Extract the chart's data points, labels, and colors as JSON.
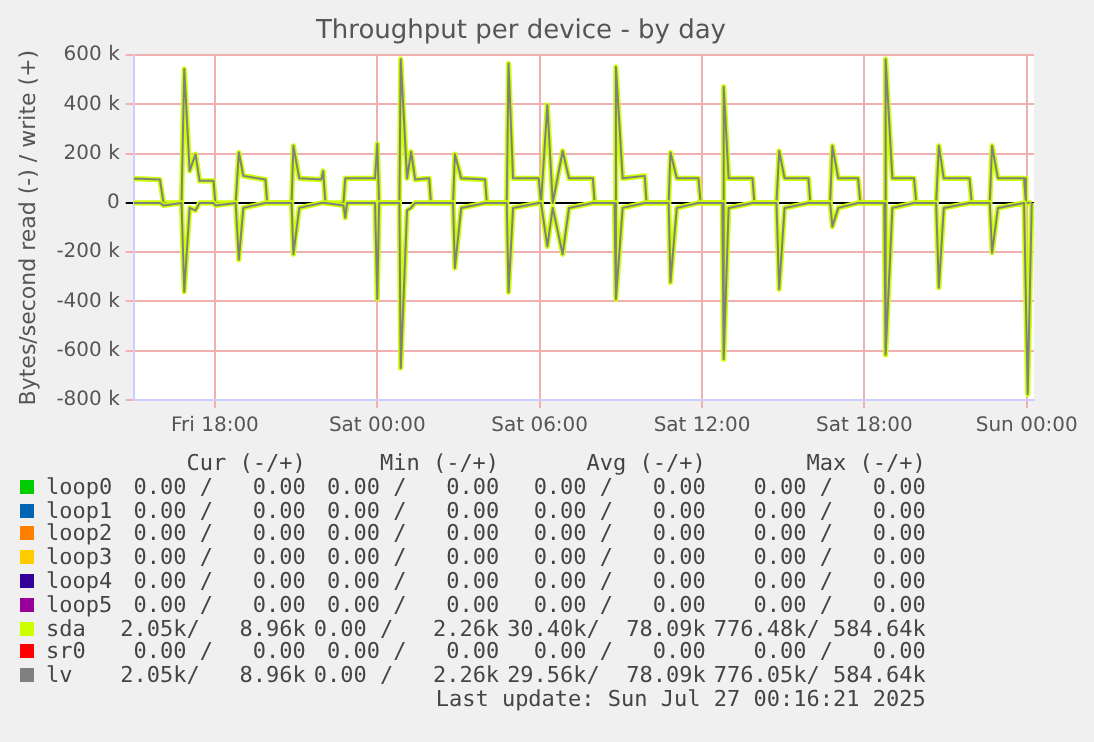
{
  "chart_data": {
    "type": "line",
    "title": "Throughput per device - by day",
    "ylabel": "Bytes/second read (-) / write (+)",
    "x": [
      "2025-07-25T15:00",
      "2025-07-25T15:13",
      "2025-07-25T15:58",
      "2025-07-25T16:06",
      "2025-07-25T16:46",
      "2025-07-25T16:52",
      "2025-07-25T17:04",
      "2025-07-25T17:17",
      "2025-07-25T17:26",
      "2025-07-25T17:57",
      "2025-07-25T18:01",
      "2025-07-25T18:46",
      "2025-07-25T18:53",
      "2025-07-25T19:03",
      "2025-07-25T19:52",
      "2025-07-25T19:56",
      "2025-07-25T20:50",
      "2025-07-25T20:54",
      "2025-07-25T21:07",
      "2025-07-25T21:56",
      "2025-07-25T22:00",
      "2025-07-25T22:05",
      "2025-07-25T22:45",
      "2025-07-25T22:49",
      "2025-07-25T22:53",
      "2025-07-25T23:55",
      "2025-07-26T00:00",
      "2025-07-26T00:04",
      "2025-07-26T00:49",
      "2025-07-26T00:52",
      "2025-07-26T01:06",
      "2025-07-26T01:15",
      "2025-07-26T01:24",
      "2025-07-26T01:55",
      "2025-07-26T01:59",
      "2025-07-26T02:48",
      "2025-07-26T02:52",
      "2025-07-26T03:06",
      "2025-07-26T03:59",
      "2025-07-26T04:03",
      "2025-07-26T04:47",
      "2025-07-26T04:51",
      "2025-07-26T05:01",
      "2025-07-26T05:58",
      "2025-07-26T06:03",
      "2025-07-26T06:17",
      "2025-07-26T06:29",
      "2025-07-26T06:51",
      "2025-07-26T07:05",
      "2025-07-26T07:58",
      "2025-07-26T08:02",
      "2025-07-26T08:46",
      "2025-07-26T08:49",
      "2025-07-26T09:04",
      "2025-07-26T09:53",
      "2025-07-26T09:57",
      "2025-07-26T10:46",
      "2025-07-26T10:50",
      "2025-07-26T11:04",
      "2025-07-26T11:52",
      "2025-07-26T11:57",
      "2025-07-26T12:45",
      "2025-07-26T12:48",
      "2025-07-26T12:59",
      "2025-07-26T13:52",
      "2025-07-26T13:56",
      "2025-07-26T14:45",
      "2025-07-26T14:51",
      "2025-07-26T15:03",
      "2025-07-26T15:56",
      "2025-07-26T16:00",
      "2025-07-26T16:44",
      "2025-07-26T16:49",
      "2025-07-26T17:02",
      "2025-07-26T17:46",
      "2025-07-26T17:51",
      "2025-07-26T18:44",
      "2025-07-26T18:47",
      "2025-07-26T19:02",
      "2025-07-26T19:50",
      "2025-07-26T19:55",
      "2025-07-26T20:39",
      "2025-07-26T20:45",
      "2025-07-26T20:56",
      "2025-07-26T21:53",
      "2025-07-26T21:58",
      "2025-07-26T22:38",
      "2025-07-26T22:43",
      "2025-07-26T22:56",
      "2025-07-26T23:54",
      "2025-07-26T23:58",
      "2025-07-27T00:02",
      "2025-07-27T00:11"
    ],
    "xlim": [
      "2025-07-25T15:00",
      "2025-07-27T00:16"
    ],
    "xticks": [
      {
        "value": "2025-07-25T18:00",
        "label": "Fri 18:00"
      },
      {
        "value": "2025-07-26T00:00",
        "label": "Sat 00:00"
      },
      {
        "value": "2025-07-26T06:00",
        "label": "Sat 06:00"
      },
      {
        "value": "2025-07-26T12:00",
        "label": "Sat 12:00"
      },
      {
        "value": "2025-07-26T18:00",
        "label": "Sat 18:00"
      },
      {
        "value": "2025-07-27T00:00",
        "label": "Sun 00:00"
      }
    ],
    "ylim": [
      -800,
      600
    ],
    "yticks": [
      {
        "value": -800,
        "label": "-800 k"
      },
      {
        "value": -600,
        "label": "-600 k"
      },
      {
        "value": -400,
        "label": "-400 k"
      },
      {
        "value": -200,
        "label": "-200 k"
      },
      0,
      {
        "value": 200,
        "label": "200 k"
      },
      {
        "value": 400,
        "label": "400 k"
      },
      {
        "value": 600,
        "label": "600 k"
      }
    ],
    "grid": true,
    "legend": "bottom",
    "marker": "none",
    "line_style": "solid",
    "series": [
      {
        "name": "loop0",
        "color": "#00cc00",
        "values": [
          null,
          null,
          null,
          null,
          null,
          null,
          null,
          null,
          null,
          null,
          null,
          null,
          null,
          null,
          null,
          null,
          null,
          null,
          null,
          null,
          null,
          null,
          null,
          null,
          null,
          null,
          null,
          null,
          null,
          null,
          null,
          null,
          null,
          null,
          null,
          null,
          null,
          null,
          null,
          null,
          null,
          null,
          null,
          null,
          null,
          null,
          null,
          null,
          null,
          null,
          null,
          null,
          null,
          null,
          null,
          null,
          null,
          null,
          null,
          null,
          null,
          null,
          null,
          null,
          null,
          null,
          null,
          null,
          null,
          null,
          null,
          null,
          null,
          null,
          null,
          null,
          null,
          null,
          null,
          null,
          null,
          null,
          null,
          null,
          null,
          null,
          null,
          null,
          null,
          null,
          null,
          null,
          null
        ]
      },
      {
        "name": "loop1",
        "color": "#0066b3",
        "values": [
          null,
          null,
          null,
          null,
          null,
          null,
          null,
          null,
          null,
          null,
          null,
          null,
          null,
          null,
          null,
          null,
          null,
          null,
          null,
          null,
          null,
          null,
          null,
          null,
          null,
          null,
          null,
          null,
          null,
          null,
          null,
          null,
          null,
          null,
          null,
          null,
          null,
          null,
          null,
          null,
          null,
          null,
          null,
          null,
          null,
          null,
          null,
          null,
          null,
          null,
          null,
          null,
          null,
          null,
          null,
          null,
          null,
          null,
          null,
          null,
          null,
          null,
          null,
          null,
          null,
          null,
          null,
          null,
          null,
          null,
          null,
          null,
          null,
          null,
          null,
          null,
          null,
          null,
          null,
          null,
          null,
          null,
          null,
          null,
          null,
          null,
          null,
          null,
          null,
          null,
          null,
          null,
          null
        ]
      },
      {
        "name": "loop2",
        "color": "#ff8000",
        "values": [
          null,
          null,
          null,
          null,
          null,
          null,
          null,
          null,
          null,
          null,
          null,
          null,
          null,
          null,
          null,
          null,
          null,
          null,
          null,
          null,
          null,
          null,
          null,
          null,
          null,
          null,
          null,
          null,
          null,
          null,
          null,
          null,
          null,
          null,
          null,
          null,
          null,
          null,
          null,
          null,
          null,
          null,
          null,
          null,
          null,
          null,
          null,
          null,
          null,
          null,
          null,
          null,
          null,
          null,
          null,
          null,
          null,
          null,
          null,
          null,
          null,
          null,
          null,
          null,
          null,
          null,
          null,
          null,
          null,
          null,
          null,
          null,
          null,
          null,
          null,
          null,
          null,
          null,
          null,
          null,
          null,
          null,
          null,
          null,
          null,
          null,
          null,
          null,
          null,
          null,
          null,
          null,
          null
        ]
      },
      {
        "name": "loop3",
        "color": "#ffcc00",
        "values": [
          null,
          null,
          null,
          null,
          null,
          null,
          null,
          null,
          null,
          null,
          null,
          null,
          null,
          null,
          null,
          null,
          null,
          null,
          null,
          null,
          null,
          null,
          null,
          null,
          null,
          null,
          null,
          null,
          null,
          null,
          null,
          null,
          null,
          null,
          null,
          null,
          null,
          null,
          null,
          null,
          null,
          null,
          null,
          null,
          null,
          null,
          null,
          null,
          null,
          null,
          null,
          null,
          null,
          null,
          null,
          null,
          null,
          null,
          null,
          null,
          null,
          null,
          null,
          null,
          null,
          null,
          null,
          null,
          null,
          null,
          null,
          null,
          null,
          null,
          null,
          null,
          null,
          null,
          null,
          null,
          null,
          null,
          null,
          null,
          null,
          null,
          null,
          null,
          null,
          null,
          null,
          null,
          null
        ]
      },
      {
        "name": "loop4",
        "color": "#330099",
        "values": [
          null,
          null,
          null,
          null,
          null,
          null,
          null,
          null,
          null,
          null,
          null,
          null,
          null,
          null,
          null,
          null,
          null,
          null,
          null,
          null,
          null,
          null,
          null,
          null,
          null,
          null,
          null,
          null,
          null,
          null,
          null,
          null,
          null,
          null,
          null,
          null,
          null,
          null,
          null,
          null,
          null,
          null,
          null,
          null,
          null,
          null,
          null,
          null,
          null,
          null,
          null,
          null,
          null,
          null,
          null,
          null,
          null,
          null,
          null,
          null,
          null,
          null,
          null,
          null,
          null,
          null,
          null,
          null,
          null,
          null,
          null,
          null,
          null,
          null,
          null,
          null,
          null,
          null,
          null,
          null,
          null,
          null,
          null,
          null,
          null,
          null,
          null,
          null,
          null,
          null,
          null,
          null,
          null
        ]
      },
      {
        "name": "loop5",
        "color": "#990099",
        "values": [
          null,
          null,
          null,
          null,
          null,
          null,
          null,
          null,
          null,
          null,
          null,
          null,
          null,
          null,
          null,
          null,
          null,
          null,
          null,
          null,
          null,
          null,
          null,
          null,
          null,
          null,
          null,
          null,
          null,
          null,
          null,
          null,
          null,
          null,
          null,
          null,
          null,
          null,
          null,
          null,
          null,
          null,
          null,
          null,
          null,
          null,
          null,
          null,
          null,
          null,
          null,
          null,
          null,
          null,
          null,
          null,
          null,
          null,
          null,
          null,
          null,
          null,
          null,
          null,
          null,
          null,
          null,
          null,
          null,
          null,
          null,
          null,
          null,
          null,
          null,
          null,
          null,
          null,
          null,
          null,
          null,
          null,
          null,
          null,
          null,
          null,
          null,
          null,
          null,
          null,
          null,
          null,
          null
        ]
      },
      {
        "name": "sda",
        "color": "#ccff00",
        "values": [
          98,
          98,
          95,
          0,
          0,
          544,
          130,
          198,
          90,
          90,
          0,
          0,
          205,
          110,
          95,
          0,
          0,
          232,
          100,
          95,
          130,
          0,
          0,
          100,
          100,
          100,
          240,
          0,
          0,
          584,
          100,
          208,
          95,
          100,
          0,
          0,
          198,
          100,
          95,
          0,
          0,
          566,
          100,
          100,
          0,
          398,
          0,
          211,
          100,
          100,
          0,
          0,
          552,
          100,
          110,
          0,
          0,
          205,
          100,
          100,
          0,
          0,
          472,
          100,
          100,
          0,
          0,
          211,
          100,
          100,
          0,
          0,
          232,
          100,
          100,
          0,
          0,
          584,
          100,
          100,
          0,
          0,
          232,
          100,
          100,
          0,
          0,
          232,
          100,
          100,
          0,
          0,
          0
        ]
      },
      {
        "name": "sr0",
        "color": "#ff0000",
        "values": [
          null,
          null,
          null,
          null,
          null,
          null,
          null,
          null,
          null,
          null,
          null,
          null,
          null,
          null,
          null,
          null,
          null,
          null,
          null,
          null,
          null,
          null,
          null,
          null,
          null,
          null,
          null,
          null,
          null,
          null,
          null,
          null,
          null,
          null,
          null,
          null,
          null,
          null,
          null,
          null,
          null,
          null,
          null,
          null,
          null,
          null,
          null,
          null,
          null,
          null,
          null,
          null,
          null,
          null,
          null,
          null,
          null,
          null,
          null,
          null,
          null,
          null,
          null,
          null,
          null,
          null,
          null,
          null,
          null,
          null,
          null,
          null,
          null,
          null,
          null,
          null,
          null,
          null,
          null,
          null,
          null,
          null,
          null,
          null,
          null,
          null,
          null,
          null,
          null,
          null,
          null,
          null,
          null
        ]
      },
      {
        "name": "lv",
        "color": "#808080",
        "values": [
          98,
          98,
          95,
          0,
          0,
          544,
          130,
          198,
          90,
          90,
          0,
          0,
          205,
          110,
          95,
          0,
          0,
          232,
          100,
          95,
          130,
          0,
          0,
          100,
          100,
          100,
          240,
          0,
          0,
          584,
          100,
          208,
          95,
          100,
          0,
          0,
          198,
          100,
          95,
          0,
          0,
          566,
          100,
          100,
          0,
          398,
          0,
          211,
          100,
          100,
          0,
          0,
          552,
          100,
          110,
          0,
          0,
          205,
          100,
          100,
          0,
          0,
          472,
          100,
          100,
          0,
          0,
          211,
          100,
          100,
          0,
          0,
          232,
          100,
          100,
          0,
          0,
          584,
          100,
          100,
          0,
          0,
          232,
          100,
          100,
          0,
          0,
          232,
          100,
          100,
          0,
          0,
          0
        ]
      },
      {
        "color": "#ccff00",
        "values": [
          0,
          0,
          0,
          -10,
          0,
          -360,
          -20,
          -30,
          0,
          0,
          -10,
          0,
          -230,
          -20,
          0,
          0,
          0,
          -208,
          -20,
          0,
          0,
          0,
          -10,
          -60,
          0,
          0,
          -390,
          0,
          0,
          -670,
          -30,
          -20,
          0,
          0,
          0,
          0,
          -264,
          -20,
          0,
          0,
          0,
          -362,
          -20,
          0,
          0,
          -176,
          -20,
          -208,
          -20,
          0,
          0,
          0,
          -390,
          -20,
          0,
          0,
          0,
          -322,
          -20,
          0,
          0,
          0,
          -634,
          -20,
          0,
          0,
          0,
          -350,
          -20,
          0,
          0,
          0,
          -96,
          -20,
          0,
          0,
          0,
          -616,
          -20,
          0,
          0,
          0,
          -344,
          -20,
          0,
          0,
          0,
          -202,
          -20,
          0,
          0,
          -776,
          0
        ]
      },
      {
        "color": "#808080",
        "values": [
          0,
          0,
          0,
          -10,
          0,
          -360,
          -20,
          -30,
          0,
          0,
          -10,
          0,
          -230,
          -20,
          0,
          0,
          0,
          -208,
          -20,
          0,
          0,
          0,
          -10,
          -60,
          0,
          0,
          -390,
          0,
          0,
          -670,
          -30,
          -20,
          0,
          0,
          0,
          0,
          -264,
          -20,
          0,
          0,
          0,
          -362,
          -20,
          0,
          0,
          -176,
          -20,
          -208,
          -20,
          0,
          0,
          0,
          -390,
          -20,
          0,
          0,
          0,
          -322,
          -20,
          0,
          0,
          0,
          -634,
          -20,
          0,
          0,
          0,
          -350,
          -20,
          0,
          0,
          0,
          -96,
          -20,
          0,
          0,
          0,
          -616,
          -20,
          0,
          0,
          0,
          -344,
          -20,
          0,
          0,
          0,
          -202,
          -20,
          0,
          0,
          -776,
          0
        ]
      }
    ],
    "annotations": [
      "Cur (-/+)",
      "Min (-/+)",
      "Avg (-/+)",
      "Max (-/+)",
      "0.00 /   0.00",
      "0.00 /   0.00",
      "0.00 /   0.00",
      "0.00 /   0.00",
      "0.00 /   0.00",
      "0.00 /   0.00",
      "0.00 /   0.00",
      "0.00 /   0.00",
      "0.00 /   0.00",
      "0.00 /   0.00",
      "0.00 /   0.00",
      "0.00 /   0.00",
      "0.00 /   0.00",
      "0.00 /   0.00",
      "0.00 /   0.00",
      "0.00 /   0.00",
      "0.00 /   0.00",
      "0.00 /   0.00",
      "0.00 /   0.00",
      "0.00 /   0.00",
      "0.00 /   0.00",
      "0.00 /   0.00",
      "0.00 /   0.00",
      "0.00 /   0.00",
      "2.05k/   8.96k",
      "0.00 /   2.26k",
      "30.40k/  78.09k",
      "776.48k/ 584.64k",
      "0.00 /   0.00",
      "0.00 /   0.00",
      "0.00 /   0.00",
      "0.00 /   0.00",
      "2.05k/   8.96k",
      "0.00 /   2.26k",
      "29.56k/  78.09k",
      "776.05k/ 584.64k",
      "Last update: Sun Jul 27 00:16:21 2025"
    ]
  }
}
